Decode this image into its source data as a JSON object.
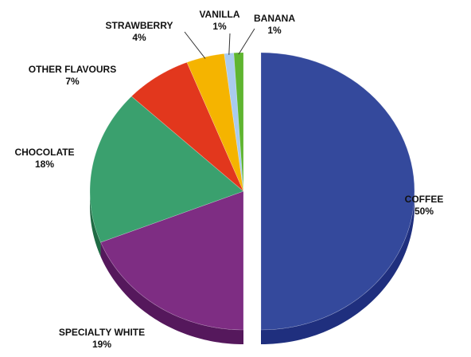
{
  "chart_data": {
    "type": "pie",
    "title": "",
    "slices": [
      {
        "name": "COFFEE",
        "pct_label": "50%",
        "value": 50,
        "color": "#34499c",
        "side_color": "#1f2f7e"
      },
      {
        "name": "SPECIALTY WHITE",
        "pct_label": "19%",
        "value": 19,
        "color": "#7e2d83",
        "side_color": "#55185c"
      },
      {
        "name": "CHOCOLATE",
        "pct_label": "18%",
        "value": 18,
        "color": "#3aa06e",
        "side_color": "#1f6b44"
      },
      {
        "name": "OTHER FLAVOURS",
        "pct_label": "7%",
        "value": 7,
        "color": "#e2371d",
        "side_color": "#9e1e0d"
      },
      {
        "name": "STRAWBERRY",
        "pct_label": "4%",
        "value": 4,
        "color": "#f5b400",
        "side_color": "#b17e00"
      },
      {
        "name": "VANILLA",
        "pct_label": "1%",
        "value": 1,
        "color": "#a9cbee",
        "side_color": "#7596bb"
      },
      {
        "name": "BANANA",
        "pct_label": "1%",
        "value": 1,
        "color": "#5fb530",
        "side_color": "#3c7d1b"
      }
    ],
    "order": "clockwise from 12 o'clock",
    "style": "3D pie, COFFEE slice exploded",
    "legend": "none (labels beside slices)"
  }
}
